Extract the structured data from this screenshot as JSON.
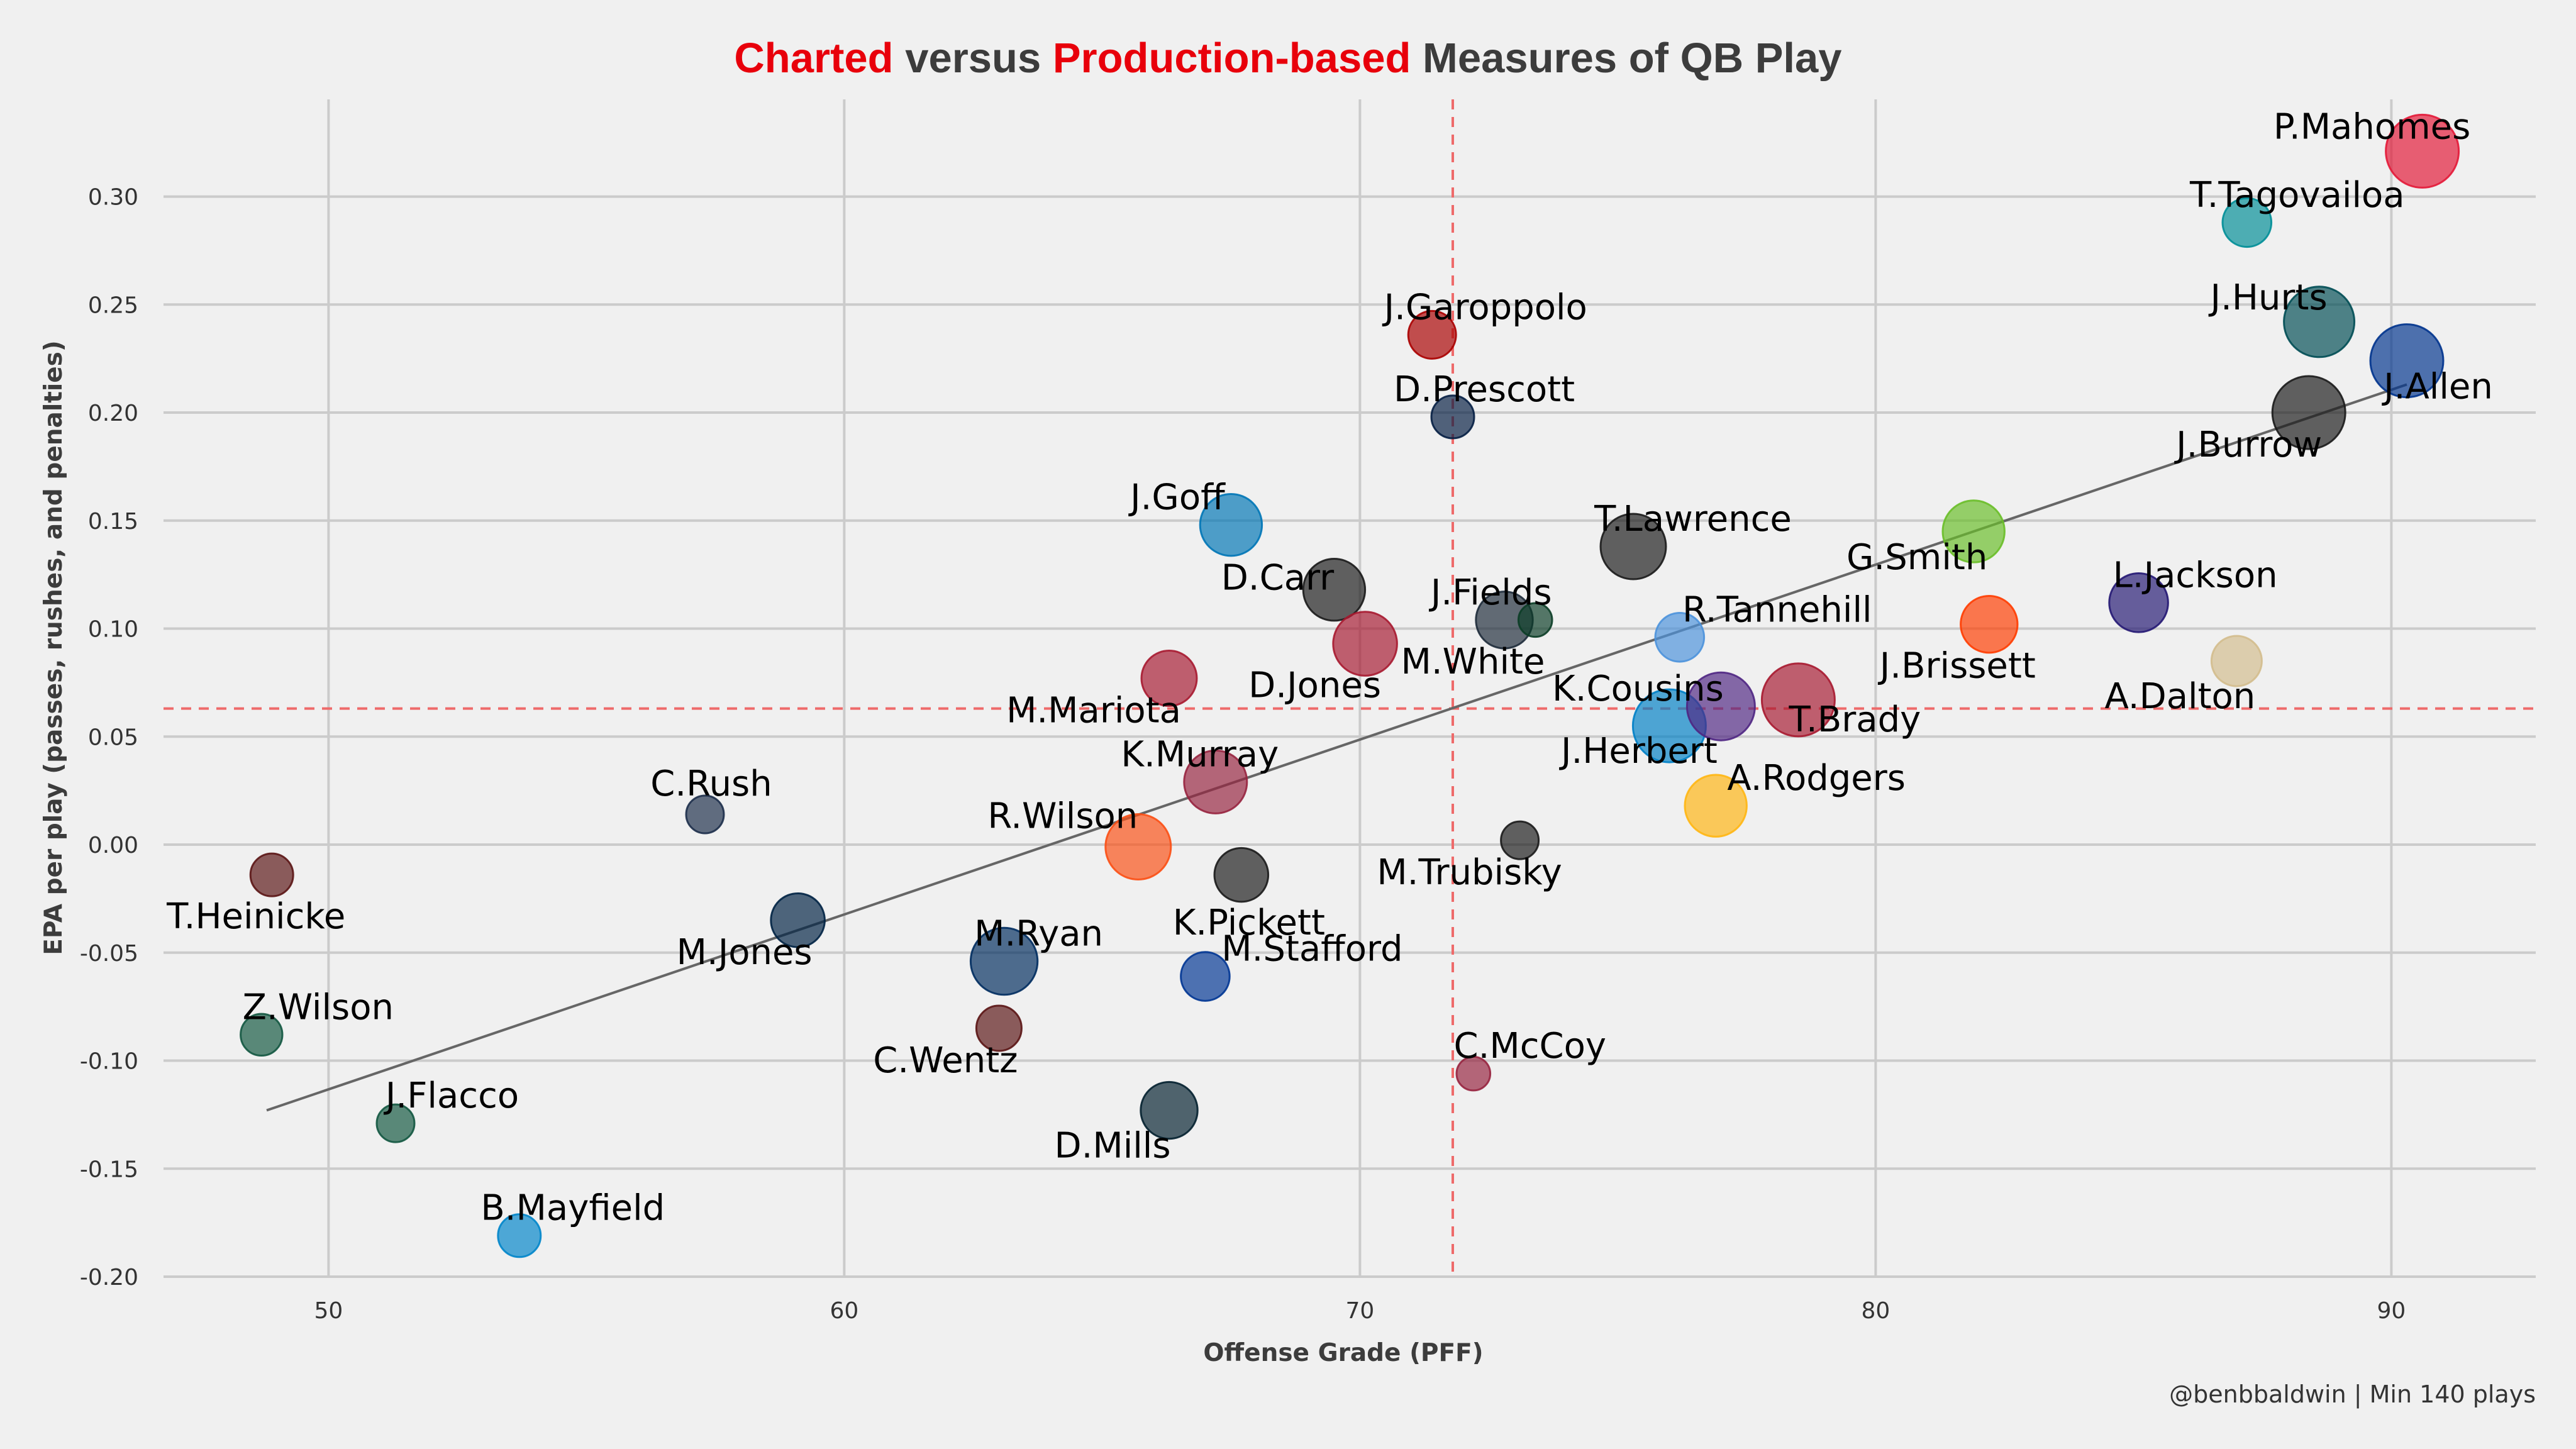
{
  "chart_data": {
    "type": "scatter",
    "title_parts": [
      {
        "text": "Charted",
        "color": "#e8000b"
      },
      {
        "text": " versus ",
        "color": "#3c3c3c"
      },
      {
        "text": "Production-based",
        "color": "#e8000b"
      },
      {
        "text": " Measures of QB Play",
        "color": "#3c3c3c"
      }
    ],
    "xlabel": "Offense Grade (PFF)",
    "ylabel": "EPA per play (passes, rushes, and penalties)",
    "xlim": [
      46.8,
      92.8
    ],
    "ylim": [
      -0.2,
      0.345
    ],
    "xticks": [
      50,
      60,
      70,
      80,
      90
    ],
    "yticks": [
      -0.2,
      -0.15,
      -0.1,
      -0.05,
      0.0,
      0.05,
      0.1,
      0.15,
      0.2,
      0.25,
      0.3
    ],
    "ytick_labels": [
      "-0.20",
      "-0.15",
      "-0.10",
      "-0.05",
      "0.00",
      "0.05",
      "0.10",
      "0.15",
      "0.20",
      "0.25",
      "0.30"
    ],
    "xtick_labels": [
      "50",
      "60",
      "70",
      "80",
      "90"
    ],
    "grid": true,
    "mean_x": 71.8,
    "mean_y": 0.063,
    "mean_line_color": "#ee6a6a",
    "trend_line": {
      "x0": 48.8,
      "y0": -0.123,
      "x1": 90.3,
      "y1": 0.213,
      "color": "#666666"
    },
    "credit": "@benbbaldwin | Min 140 plays",
    "points": [
      {
        "name": "P.Mahomes",
        "x": 90.6,
        "y": 0.321,
        "size": 1.0,
        "color": "#e31837"
      },
      {
        "name": "T.Tagovailoa",
        "x": 87.2,
        "y": 0.288,
        "size": 0.52,
        "color": "#008e97"
      },
      {
        "name": "J.Hurts",
        "x": 88.6,
        "y": 0.242,
        "size": 0.95,
        "color": "#004c54"
      },
      {
        "name": "J.Allen",
        "x": 90.3,
        "y": 0.224,
        "size": 1.0,
        "color": "#00338d"
      },
      {
        "name": "J.Burrow",
        "x": 88.4,
        "y": 0.2,
        "size": 1.0,
        "color": "#1a1a1a"
      },
      {
        "name": "J.Garoppolo",
        "x": 71.4,
        "y": 0.236,
        "size": 0.5,
        "color": "#aa0000"
      },
      {
        "name": "D.Prescott",
        "x": 71.8,
        "y": 0.198,
        "size": 0.4,
        "color": "#041e42"
      },
      {
        "name": "J.Goff",
        "x": 67.5,
        "y": 0.148,
        "size": 0.78,
        "color": "#0076b6"
      },
      {
        "name": "D.Carr",
        "x": 69.5,
        "y": 0.118,
        "size": 0.78,
        "color": "#1a1a1a"
      },
      {
        "name": "D.Jones",
        "x": 70.1,
        "y": 0.093,
        "size": 0.82,
        "color": "#a71930"
      },
      {
        "name": "M.White",
        "x": 72.8,
        "y": 0.104,
        "size": 0.68,
        "color": "#1e2b3a"
      },
      {
        "name": "J.Fields",
        "x": 73.4,
        "y": 0.104,
        "size": 0.22,
        "color": "#0b3d26"
      },
      {
        "name": "T.Lawrence",
        "x": 75.3,
        "y": 0.138,
        "size": 0.85,
        "color": "#1a1a1a"
      },
      {
        "name": "R.Tannehill",
        "x": 76.2,
        "y": 0.096,
        "size": 0.52,
        "color": "#4b92db"
      },
      {
        "name": "G.Smith",
        "x": 81.9,
        "y": 0.145,
        "size": 0.78,
        "color": "#69be28"
      },
      {
        "name": "J.Brissett",
        "x": 82.2,
        "y": 0.102,
        "size": 0.68,
        "color": "#ff3c00"
      },
      {
        "name": "L.Jackson",
        "x": 85.1,
        "y": 0.112,
        "size": 0.72,
        "color": "#241773"
      },
      {
        "name": "A.Dalton",
        "x": 87.0,
        "y": 0.085,
        "size": 0.55,
        "color": "#d3bc8d"
      },
      {
        "name": "M.Mariota",
        "x": 66.3,
        "y": 0.077,
        "size": 0.65,
        "color": "#a71930"
      },
      {
        "name": "K.Cousins",
        "x": 76.0,
        "y": 0.055,
        "size": 1.0,
        "color": "#0080c6"
      },
      {
        "name": "J.Herbert",
        "x": 77.0,
        "y": 0.064,
        "size": 0.9,
        "color": "#4f2683"
      },
      {
        "name": "T.Brady",
        "x": 78.5,
        "y": 0.067,
        "size": 1.0,
        "color": "#a71930"
      },
      {
        "name": "K.Murray",
        "x": 67.2,
        "y": 0.029,
        "size": 0.8,
        "color": "#97233f"
      },
      {
        "name": "A.Rodgers",
        "x": 76.9,
        "y": 0.018,
        "size": 0.78,
        "color": "#ffb612"
      },
      {
        "name": "C.Rush",
        "x": 57.3,
        "y": 0.014,
        "size": 0.3,
        "color": "#1c2e4a"
      },
      {
        "name": "R.Wilson",
        "x": 65.7,
        "y": -0.001,
        "size": 0.85,
        "color": "#fb4f14"
      },
      {
        "name": "K.Pickett",
        "x": 67.7,
        "y": -0.014,
        "size": 0.62,
        "color": "#1a1a1a"
      },
      {
        "name": "M.Trubisky",
        "x": 73.1,
        "y": 0.002,
        "size": 0.3,
        "color": "#1a1a1a"
      },
      {
        "name": "T.Heinicke",
        "x": 48.9,
        "y": -0.014,
        "size": 0.4,
        "color": "#5a1414"
      },
      {
        "name": "M.Jones",
        "x": 59.1,
        "y": -0.035,
        "size": 0.62,
        "color": "#002244"
      },
      {
        "name": "M.Ryan",
        "x": 63.1,
        "y": -0.054,
        "size": 0.88,
        "color": "#002c5f"
      },
      {
        "name": "M.Stafford",
        "x": 67.0,
        "y": -0.061,
        "size": 0.52,
        "color": "#003594"
      },
      {
        "name": "C.Wentz",
        "x": 63.0,
        "y": -0.085,
        "size": 0.45,
        "color": "#5a1414"
      },
      {
        "name": "Z.Wilson",
        "x": 48.7,
        "y": -0.088,
        "size": 0.38,
        "color": "#125740"
      },
      {
        "name": "C.McCoy",
        "x": 72.2,
        "y": -0.106,
        "size": 0.22,
        "color": "#97233f"
      },
      {
        "name": "D.Mills",
        "x": 66.3,
        "y": -0.123,
        "size": 0.68,
        "color": "#03202f"
      },
      {
        "name": "J.Flacco",
        "x": 51.3,
        "y": -0.129,
        "size": 0.3,
        "color": "#125740"
      },
      {
        "name": "B.Mayfield",
        "x": 53.7,
        "y": -0.181,
        "size": 0.4,
        "color": "#0085ca"
      }
    ]
  }
}
